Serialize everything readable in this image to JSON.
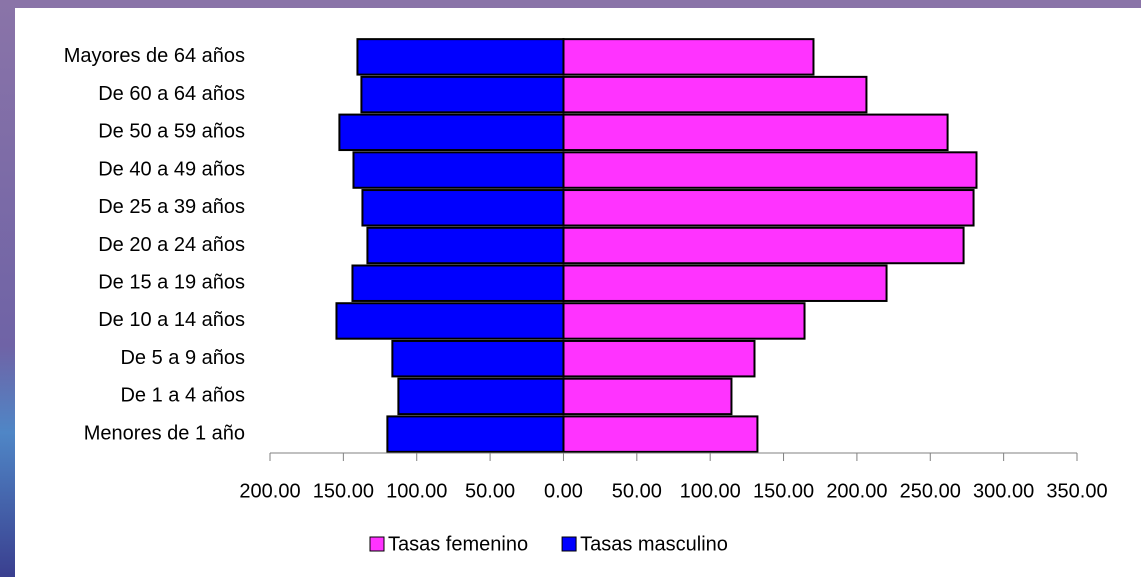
{
  "chart_data": {
    "type": "bar",
    "orientation": "horizontal",
    "stacked": true,
    "categories": [
      "Menores de 1 año",
      "De 1 a 4 años",
      "De 5 a 9 años",
      "De 10 a 14 años",
      "De 15 a 19 años",
      "De 20 a 24 años",
      "De 25 a 39 años",
      "De 40 a 49 años",
      "De 50 a 59 años",
      "De 60 a 64 años",
      "Mayores de 64 años"
    ],
    "series": [
      {
        "name": "Tasas femenino",
        "color": "#ff33ff",
        "values": [
          132.2,
          114.5,
          130.2,
          164.3,
          220.2,
          272.7,
          279.5,
          281.5,
          261.8,
          206.5,
          170.4
        ]
      },
      {
        "name": "Tasas masculino",
        "color": "#0000ff",
        "values": [
          -120.0,
          -112.5,
          -116.6,
          -154.7,
          -143.8,
          -133.6,
          -137.0,
          -143.1,
          -152.7,
          -137.7,
          -140.4
        ]
      }
    ],
    "xlim": [
      -200,
      350
    ],
    "xticks": [
      {
        "value": -200,
        "label": "200.00"
      },
      {
        "value": -150,
        "label": "150.00"
      },
      {
        "value": -100,
        "label": "100.00"
      },
      {
        "value": -50,
        "label": "50.00"
      },
      {
        "value": 0,
        "label": "0.00"
      },
      {
        "value": 50,
        "label": "50.00"
      },
      {
        "value": 100,
        "label": "100.00"
      },
      {
        "value": 150,
        "label": "150.00"
      },
      {
        "value": 200,
        "label": "200.00"
      },
      {
        "value": 250,
        "label": "250.00"
      },
      {
        "value": 300,
        "label": "300.00"
      },
      {
        "value": 350,
        "label": "350.00"
      }
    ],
    "legend": "bottom"
  }
}
